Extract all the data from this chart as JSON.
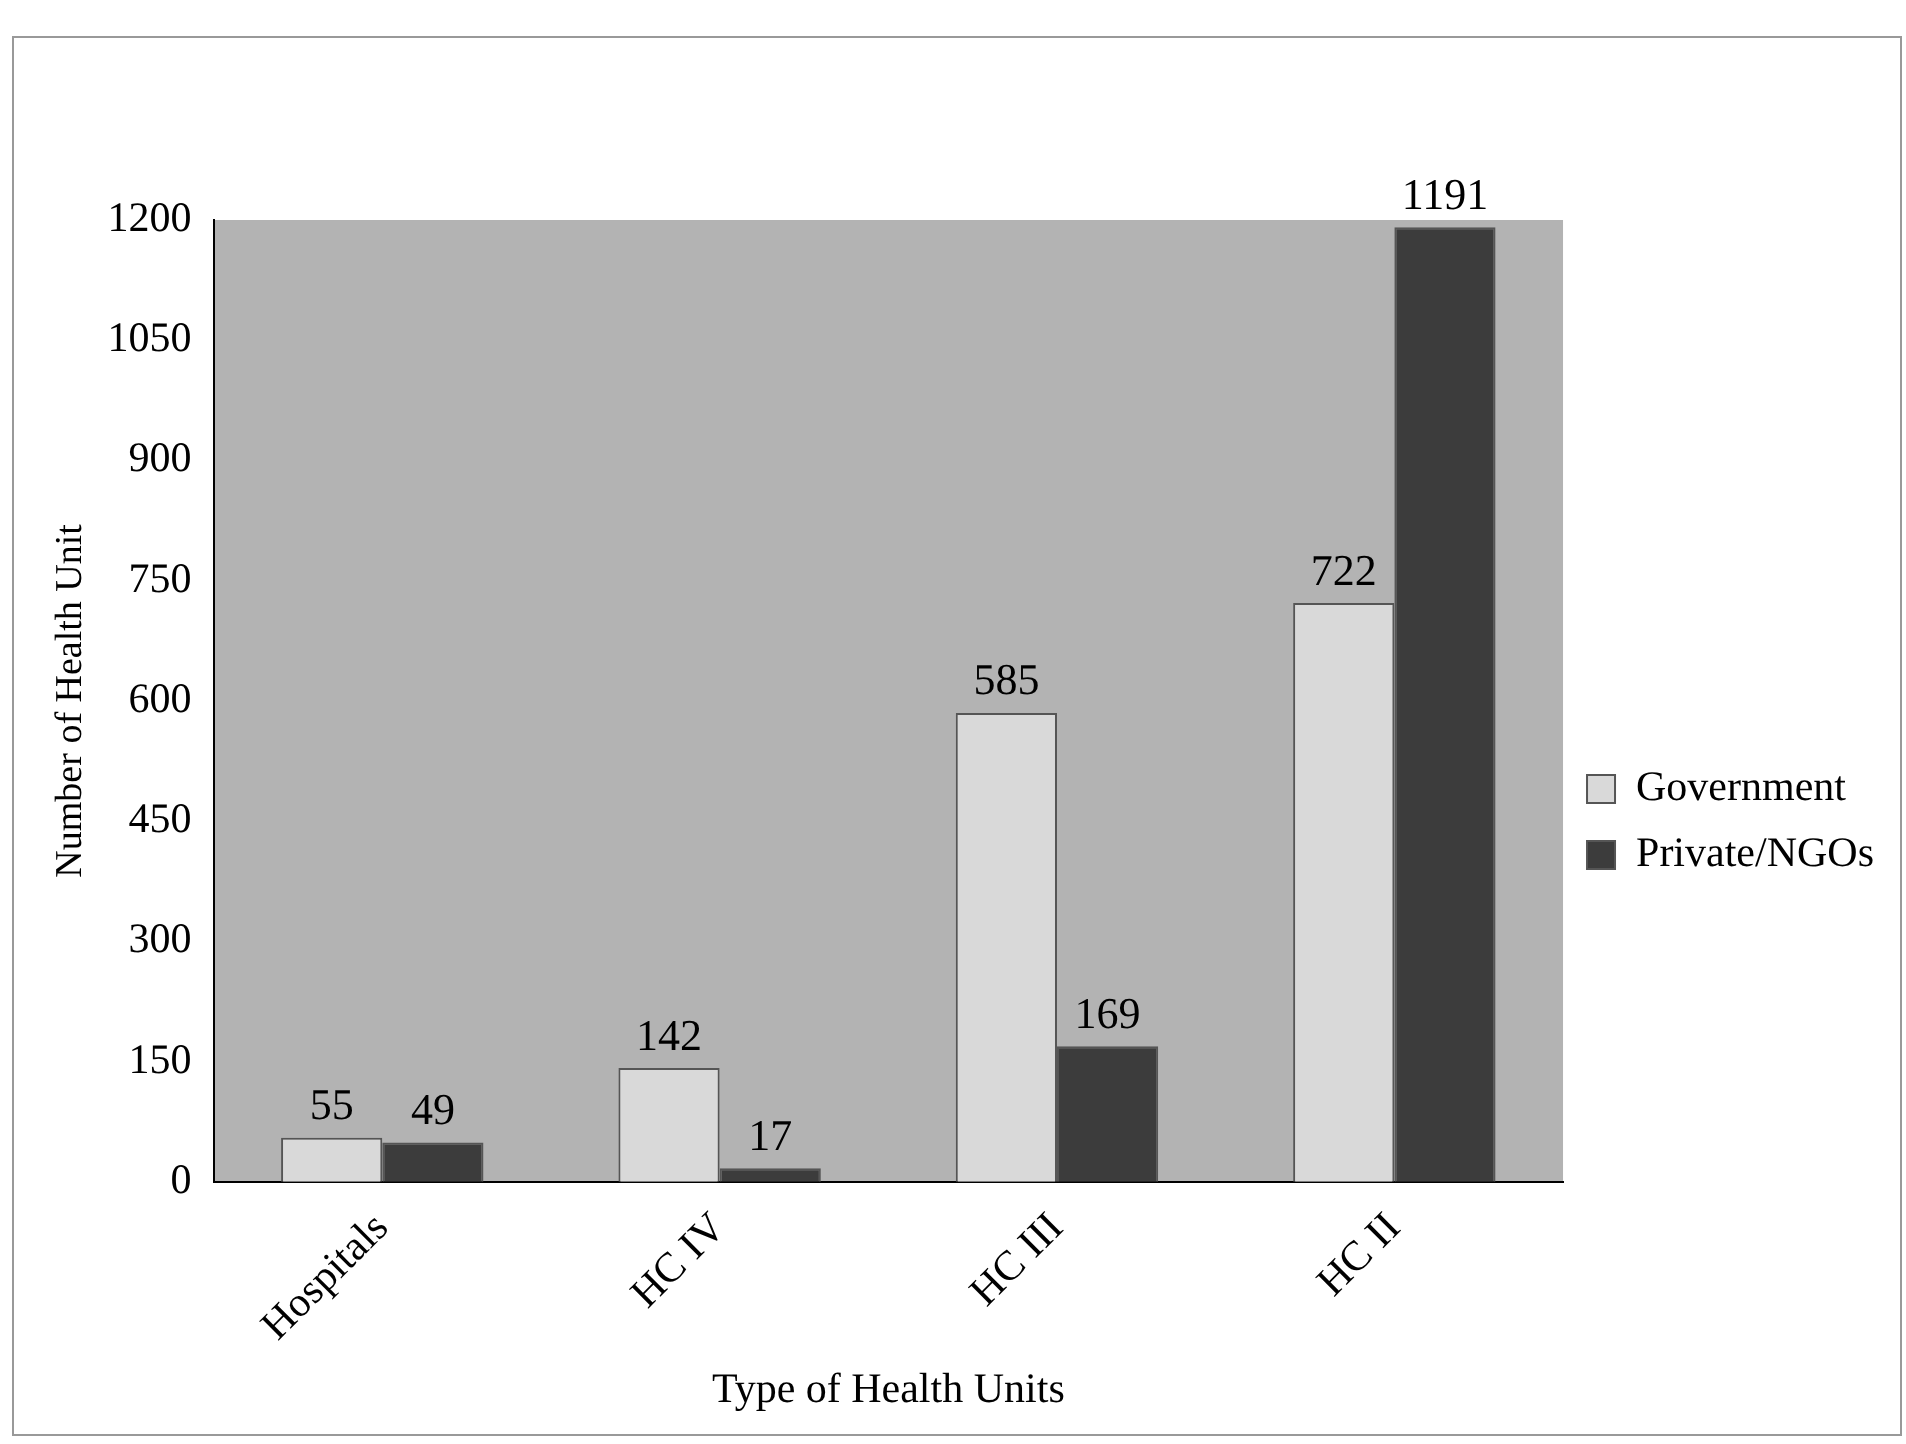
{
  "chart_data": {
    "type": "bar",
    "xlabel": "Type of Health Units",
    "ylabel": "Number of Health Unit",
    "categories": [
      "Hospitals",
      "HC IV",
      "HC III",
      "HC II"
    ],
    "series": [
      {
        "name": "Government",
        "color": "#d9d9d9",
        "values": [
          55,
          142,
          585,
          722
        ]
      },
      {
        "name": "Private/NGOs",
        "color": "#3c3c3c",
        "values": [
          49,
          17,
          169,
          1191
        ]
      }
    ],
    "ylim": [
      0,
      1200
    ],
    "yticks": [
      0,
      150,
      300,
      450,
      600,
      750,
      900,
      1050,
      1200
    ],
    "grid": false,
    "legend": "right",
    "data_labels": true
  }
}
